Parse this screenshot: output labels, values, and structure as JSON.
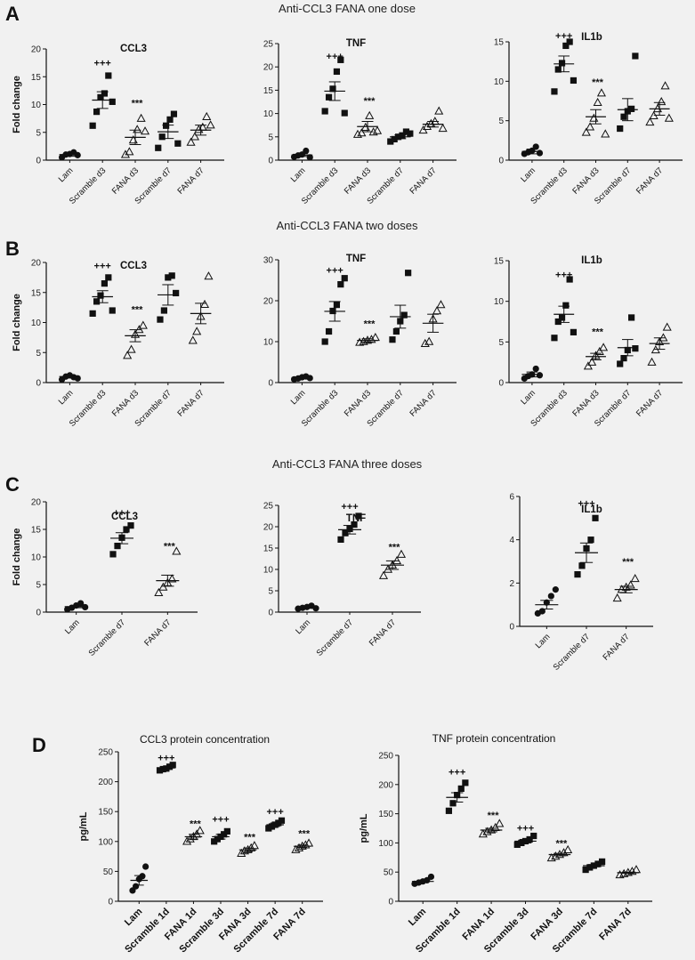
{
  "panels": [
    {
      "letter": "A",
      "title": "Anti-CCL3 FANA one dose"
    },
    {
      "letter": "B",
      "title": "Anti-CCL3 FANA two doses"
    },
    {
      "letter": "C",
      "title": "Anti-CCL3 FANA three doses"
    },
    {
      "letter": "D",
      "title": ""
    }
  ],
  "chart_data": [
    {
      "type": "scatter",
      "panel": "A",
      "title": "CCL3",
      "ylabel": "Fold change",
      "ylim": [
        0,
        20
      ],
      "yticks": [
        0,
        5,
        10,
        15,
        20
      ],
      "categories": [
        "Lam",
        "Scramble d3",
        "FANA d3",
        "Scramble d7",
        "FANA d7"
      ],
      "markers": [
        "circle",
        "square",
        "triangle",
        "square",
        "triangle"
      ],
      "mean": [
        1.0,
        10.8,
        4.1,
        5.1,
        5.4
      ],
      "sem": [
        0.3,
        1.5,
        1.3,
        1.2,
        0.9
      ],
      "points": [
        [
          0.5,
          1.0,
          1.1,
          1.4,
          0.9
        ],
        [
          6.2,
          8.7,
          11.3,
          12.0,
          15.2,
          10.5
        ],
        [
          1.0,
          1.5,
          3.6,
          5.5,
          7.5,
          5.2
        ],
        [
          2.2,
          4.2,
          6.2,
          7.3,
          8.3,
          3.0
        ],
        [
          3.2,
          4.2,
          5.5,
          5.9,
          7.8,
          6.3
        ]
      ],
      "annotations": [
        {
          "category": 1,
          "text": "+++",
          "value": 17.5
        },
        {
          "category": 2,
          "text": "***",
          "value": 10.3
        }
      ]
    },
    {
      "type": "scatter",
      "panel": "A",
      "title": "TNF",
      "ylabel": "",
      "ylim": [
        0,
        25
      ],
      "yticks": [
        0,
        5,
        10,
        15,
        20,
        25
      ],
      "categories": [
        "Lam",
        "Scramble d3",
        "FANA d3",
        "Scramble d7",
        "FANA d7"
      ],
      "markers": [
        "circle",
        "square",
        "triangle",
        "square",
        "triangle"
      ],
      "mean": [
        1.1,
        14.8,
        7.2,
        5.0,
        7.7
      ],
      "sem": [
        0.3,
        2.0,
        1.1,
        0.4,
        0.6
      ],
      "points": [
        [
          0.7,
          1.0,
          1.2,
          2.0,
          0.6
        ],
        [
          10.5,
          13.5,
          15.3,
          19.0,
          21.5,
          10.1
        ],
        [
          5.5,
          5.8,
          7.0,
          9.5,
          6.0,
          6.3
        ],
        [
          4.0,
          4.5,
          5.0,
          5.3,
          6.1,
          5.7
        ],
        [
          6.4,
          7.2,
          7.8,
          8.3,
          10.5,
          6.8
        ]
      ],
      "annotations": [
        {
          "category": 1,
          "text": "+++",
          "value": 22.3
        },
        {
          "category": 2,
          "text": "***",
          "value": 12.8
        }
      ]
    },
    {
      "type": "scatter",
      "panel": "A",
      "title": "IL1b",
      "ylabel": "",
      "ylim": [
        0,
        15
      ],
      "yticks": [
        0,
        5,
        10,
        15
      ],
      "categories": [
        "Lam",
        "Scramble d3",
        "FANA d3",
        "Scramble d7",
        "FANA d7"
      ],
      "markers": [
        "circle",
        "square",
        "triangle",
        "square",
        "triangle"
      ],
      "mean": [
        1.1,
        12.2,
        5.5,
        6.4,
        6.5
      ],
      "sem": [
        0.3,
        1.0,
        0.9,
        1.4,
        0.8
      ],
      "points": [
        [
          0.8,
          1.0,
          1.2,
          1.7,
          0.9
        ],
        [
          8.7,
          11.5,
          12.3,
          14.5,
          15.0,
          10.1
        ],
        [
          3.5,
          4.2,
          5.3,
          7.3,
          8.5,
          3.3
        ],
        [
          4.0,
          5.5,
          6.2,
          6.5,
          13.2
        ],
        [
          4.8,
          5.6,
          6.5,
          7.4,
          9.4,
          5.3
        ]
      ],
      "annotations": [
        {
          "category": 1,
          "text": "+++",
          "value": 15.8
        },
        {
          "category": 2,
          "text": "***",
          "value": 9.9
        }
      ]
    },
    {
      "type": "scatter",
      "panel": "B",
      "title": "CCL3",
      "ylabel": "Fold change",
      "ylim": [
        0,
        20
      ],
      "yticks": [
        0,
        5,
        10,
        15,
        20
      ],
      "categories": [
        "Lam",
        "Scramble d3",
        "FANA d3",
        "Scramble d7",
        "FANA d7"
      ],
      "markers": [
        "circle",
        "square",
        "triangle",
        "square",
        "triangle"
      ],
      "mean": [
        1.0,
        14.3,
        7.8,
        14.6,
        11.5
      ],
      "sem": [
        0.2,
        1.0,
        1.0,
        1.7,
        1.7
      ],
      "points": [
        [
          0.5,
          1.0,
          1.2,
          0.9,
          0.7
        ],
        [
          11.5,
          13.5,
          14.5,
          16.5,
          17.5,
          12.0
        ],
        [
          4.5,
          5.5,
          8.0,
          8.8,
          9.5
        ],
        [
          10.5,
          12.0,
          17.5,
          17.8,
          14.9
        ],
        [
          7.0,
          8.5,
          11.0,
          13.0,
          17.7
        ]
      ],
      "annotations": [
        {
          "category": 1,
          "text": "+++",
          "value": 19.5
        },
        {
          "category": 2,
          "text": "***",
          "value": 12.2
        }
      ]
    },
    {
      "type": "scatter",
      "panel": "B",
      "title": "TNF",
      "ylabel": "",
      "ylim": [
        0,
        30
      ],
      "yticks": [
        0,
        10,
        20,
        30
      ],
      "categories": [
        "Lam",
        "Scramble d3",
        "FANA d3",
        "Scramble d7",
        "FANA d7"
      ],
      "markers": [
        "circle",
        "square",
        "triangle",
        "square",
        "triangle"
      ],
      "mean": [
        1.2,
        17.4,
        10.3,
        16.1,
        14.5
      ],
      "sem": [
        0.2,
        2.4,
        0.4,
        2.8,
        2.2
      ],
      "points": [
        [
          0.8,
          1.0,
          1.3,
          1.5,
          1.1
        ],
        [
          10.0,
          12.5,
          17.5,
          19.0,
          24.0,
          25.5
        ],
        [
          9.8,
          10.0,
          10.3,
          10.5,
          11.0
        ],
        [
          10.5,
          12.5,
          15.0,
          16.5,
          26.8
        ],
        [
          9.5,
          10.0,
          15.5,
          17.5,
          19.0
        ]
      ],
      "annotations": [
        {
          "category": 1,
          "text": "+++",
          "value": 27.5
        },
        {
          "category": 2,
          "text": "***",
          "value": 14.5
        }
      ]
    },
    {
      "type": "scatter",
      "panel": "B",
      "title": "IL1b",
      "ylabel": "",
      "ylim": [
        0,
        15
      ],
      "yticks": [
        0,
        5,
        10,
        15
      ],
      "categories": [
        "Lam",
        "Scramble d3",
        "FANA d3",
        "Scramble d7",
        "FANA d7"
      ],
      "markers": [
        "circle",
        "square",
        "triangle",
        "square",
        "triangle"
      ],
      "mean": [
        1.0,
        8.4,
        3.2,
        4.3,
        4.8
      ],
      "sem": [
        0.3,
        1.0,
        0.4,
        1.0,
        0.7
      ],
      "points": [
        [
          0.5,
          0.8,
          1.0,
          1.7,
          0.9
        ],
        [
          5.5,
          7.5,
          8.0,
          9.5,
          12.7,
          6.2
        ],
        [
          2.0,
          2.5,
          3.3,
          3.8,
          4.3
        ],
        [
          2.3,
          3.0,
          4.0,
          8.0,
          4.2
        ],
        [
          2.5,
          4.0,
          5.0,
          5.5,
          6.8
        ]
      ],
      "annotations": [
        {
          "category": 1,
          "text": "+++",
          "value": 13.3
        },
        {
          "category": 2,
          "text": "***",
          "value": 6.3
        }
      ]
    },
    {
      "type": "scatter",
      "panel": "C",
      "title": "CCL3",
      "ylabel": "Fold change",
      "ylim": [
        0,
        20
      ],
      "yticks": [
        0,
        5,
        10,
        15,
        20
      ],
      "categories": [
        "Lam",
        "Scramble d7",
        "FANA d7"
      ],
      "markers": [
        "circle",
        "square",
        "triangle"
      ],
      "mean": [
        1.0,
        13.4,
        5.7
      ],
      "sem": [
        0.2,
        1.0,
        1.0
      ],
      "points": [
        [
          0.5,
          0.8,
          1.2,
          1.6,
          0.9
        ],
        [
          10.5,
          12.0,
          13.5,
          15.0,
          15.7
        ],
        [
          3.5,
          4.5,
          5.3,
          6.0,
          11.0
        ]
      ],
      "annotations": [
        {
          "category": 1,
          "text": "+++",
          "value": 18.1
        },
        {
          "category": 2,
          "text": "***",
          "value": 12.0
        }
      ]
    },
    {
      "type": "scatter",
      "panel": "C",
      "title": "TNF",
      "ylabel": "",
      "ylim": [
        0,
        25
      ],
      "yticks": [
        0,
        5,
        10,
        15,
        20,
        25
      ],
      "categories": [
        "Lam",
        "Scramble d7",
        "FANA d7"
      ],
      "markers": [
        "circle",
        "square",
        "triangle"
      ],
      "mean": [
        1.1,
        19.3,
        11.0
      ],
      "sem": [
        0.2,
        1.0,
        1.0
      ],
      "points": [
        [
          0.8,
          1.0,
          1.2,
          1.5,
          0.9
        ],
        [
          17.0,
          18.5,
          19.5,
          20.5,
          22.5
        ],
        [
          8.5,
          10.0,
          11.0,
          12.0,
          13.5
        ]
      ],
      "annotations": [
        {
          "category": 1,
          "text": "+++",
          "value": 24.8
        },
        {
          "category": 2,
          "text": "***",
          "value": 15.3
        }
      ]
    },
    {
      "type": "scatter",
      "panel": "C",
      "title": "IL1b",
      "ylabel": "",
      "ylim": [
        0,
        6
      ],
      "yticks": [
        0,
        2,
        4,
        6
      ],
      "categories": [
        "Lam",
        "Scramble d7",
        "FANA d7"
      ],
      "markers": [
        "circle",
        "square",
        "triangle"
      ],
      "mean": [
        1.0,
        3.4,
        1.7
      ],
      "sem": [
        0.2,
        0.45,
        0.15
      ],
      "points": [
        [
          0.6,
          0.7,
          1.1,
          1.4,
          1.7
        ],
        [
          2.4,
          2.8,
          3.6,
          4.0,
          5.0
        ],
        [
          1.3,
          1.7,
          1.8,
          1.9,
          2.2
        ]
      ],
      "annotations": [
        {
          "category": 1,
          "text": "+++",
          "value": 5.7
        },
        {
          "category": 2,
          "text": "***",
          "value": 3.0
        }
      ]
    },
    {
      "type": "scatter",
      "panel": "D",
      "title": "CCL3 protein concentration",
      "ylabel": "pg/mL",
      "ylim": [
        0,
        250
      ],
      "yticks": [
        0,
        50,
        100,
        150,
        200,
        250
      ],
      "categories": [
        "Lam",
        "Scramble 1d",
        "FANA 1d",
        "Scramble 3d",
        "FANA 3d",
        "Scramble 7d",
        "FANA 7d"
      ],
      "markers": [
        "circle",
        "square",
        "triangle",
        "square",
        "triangle",
        "square",
        "triangle"
      ],
      "mean": [
        35,
        223,
        108,
        108,
        86,
        128,
        92
      ],
      "sem": [
        8,
        2,
        4,
        4,
        3,
        3,
        2
      ],
      "points": [
        [
          18,
          25,
          37,
          42,
          58
        ],
        [
          219,
          221,
          222,
          225,
          228
        ],
        [
          100,
          104,
          108,
          112,
          118
        ],
        [
          100,
          104,
          108,
          112,
          117
        ],
        [
          80,
          84,
          86,
          89,
          93
        ],
        [
          122,
          125,
          128,
          131,
          135
        ],
        [
          86,
          89,
          92,
          94,
          97
        ]
      ],
      "annotations": [
        {
          "category": 1,
          "text": "+++",
          "value": 240
        },
        {
          "category": 2,
          "text": "***",
          "value": 130
        },
        {
          "category": 3,
          "text": "+++",
          "value": 138
        },
        {
          "category": 4,
          "text": "***",
          "value": 108
        },
        {
          "category": 5,
          "text": "+++",
          "value": 150
        },
        {
          "category": 6,
          "text": "***",
          "value": 114
        }
      ]
    },
    {
      "type": "scatter",
      "panel": "D",
      "title": "TNF protein concentration",
      "ylabel": "pg/mL",
      "ylim": [
        0,
        250
      ],
      "yticks": [
        0,
        50,
        100,
        150,
        200,
        250
      ],
      "categories": [
        "Lam",
        "Scramble 1d",
        "FANA 1d",
        "Scramble 3d",
        "FANA 3d",
        "Scramble 7d",
        "FANA 7d"
      ],
      "markers": [
        "circle",
        "square",
        "triangle",
        "square",
        "triangle",
        "square",
        "triangle"
      ],
      "mean": [
        34,
        178,
        122,
        103,
        80,
        61,
        49
      ],
      "sem": [
        2,
        8,
        3,
        3,
        2,
        2,
        1
      ],
      "points": [
        [
          30,
          32,
          34,
          36,
          42
        ],
        [
          155,
          168,
          182,
          193,
          203
        ],
        [
          115,
          119,
          122,
          126,
          133
        ],
        [
          97,
          100,
          103,
          106,
          112
        ],
        [
          74,
          77,
          80,
          83,
          88
        ],
        [
          54,
          58,
          61,
          64,
          68
        ],
        [
          45,
          47,
          49,
          51,
          54
        ]
      ],
      "annotations": [
        {
          "category": 1,
          "text": "+++",
          "value": 222
        },
        {
          "category": 2,
          "text": "***",
          "value": 148
        },
        {
          "category": 3,
          "text": "+++",
          "value": 126
        },
        {
          "category": 4,
          "text": "***",
          "value": 100
        },
        {
          "category": 5,
          "text": "",
          "value": 0
        },
        {
          "category": 6,
          "text": "",
          "value": 0
        }
      ]
    }
  ]
}
